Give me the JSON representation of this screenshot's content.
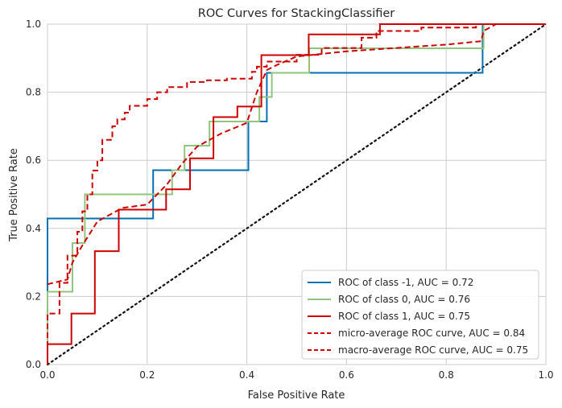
{
  "chart_data": {
    "type": "line",
    "title": "ROC Curves for StackingClassifier",
    "xlabel": "False Positive Rate",
    "ylabel": "True Positive Rate",
    "xlim": [
      0,
      1
    ],
    "ylim": [
      0,
      1
    ],
    "xticks": [
      "0.0",
      "0.2",
      "0.4",
      "0.6",
      "0.8",
      "1.0"
    ],
    "yticks": [
      "0.0",
      "0.2",
      "0.4",
      "0.6",
      "0.8",
      "1.0"
    ],
    "grid": true,
    "legend_position": "lower-right",
    "series": [
      {
        "name": "ROC of class -1, AUC = 0.72",
        "color": "#0072b2",
        "style": "solid",
        "x": [
          0,
          0,
          0.212,
          0.212,
          0.403,
          0.403,
          0.44,
          0.44,
          0.452,
          0.452,
          0.873,
          0.873,
          1
        ],
        "y": [
          0,
          0.429,
          0.429,
          0.571,
          0.571,
          0.714,
          0.714,
          0.857,
          0.857,
          0.857,
          0.857,
          1,
          1
        ]
      },
      {
        "name": "ROC of class 0, AUC = 0.76",
        "color": "#93c47d",
        "style": "solid",
        "x": [
          0,
          0,
          0.05,
          0.05,
          0.075,
          0.075,
          0.25,
          0.25,
          0.275,
          0.275,
          0.325,
          0.325,
          0.425,
          0.425,
          0.45,
          0.45,
          0.525,
          0.525,
          0.875,
          0.875,
          1
        ],
        "y": [
          0,
          0.214,
          0.214,
          0.357,
          0.357,
          0.5,
          0.5,
          0.571,
          0.571,
          0.643,
          0.643,
          0.714,
          0.714,
          0.786,
          0.786,
          0.857,
          0.857,
          0.929,
          0.929,
          1,
          1
        ]
      },
      {
        "name": "ROC of class 1, AUC = 0.75",
        "color": "#cc0000",
        "style": "solid",
        "x": [
          0,
          0,
          0.048,
          0.048,
          0.095,
          0.095,
          0.143,
          0.143,
          0.238,
          0.238,
          0.286,
          0.286,
          0.333,
          0.333,
          0.381,
          0.381,
          0.429,
          0.429,
          0.524,
          0.524,
          0.667,
          0.667,
          0.873,
          0.873,
          1
        ],
        "y": [
          0,
          0.06,
          0.06,
          0.15,
          0.15,
          0.333,
          0.333,
          0.455,
          0.455,
          0.515,
          0.515,
          0.606,
          0.606,
          0.727,
          0.727,
          0.758,
          0.758,
          0.909,
          0.909,
          0.97,
          0.97,
          1,
          1,
          1,
          1
        ]
      },
      {
        "name": "micro-average ROC curve, AUC = 0.84",
        "color": "#cc0000",
        "style": "dashed",
        "x": [
          0,
          0,
          0.024,
          0.024,
          0.04,
          0.04,
          0.06,
          0.06,
          0.07,
          0.07,
          0.08,
          0.08,
          0.09,
          0.09,
          0.1,
          0.1,
          0.11,
          0.11,
          0.13,
          0.13,
          0.14,
          0.14,
          0.155,
          0.155,
          0.165,
          0.165,
          0.2,
          0.2,
          0.22,
          0.22,
          0.24,
          0.24,
          0.28,
          0.28,
          0.32,
          0.32,
          0.36,
          0.36,
          0.41,
          0.41,
          0.42,
          0.42,
          0.44,
          0.44,
          0.5,
          0.5,
          0.55,
          0.55,
          0.63,
          0.63,
          0.66,
          0.66,
          0.75,
          0.75,
          0.86,
          0.86,
          1
        ],
        "y": [
          0,
          0.15,
          0.15,
          0.24,
          0.24,
          0.32,
          0.32,
          0.39,
          0.39,
          0.45,
          0.45,
          0.5,
          0.5,
          0.57,
          0.57,
          0.6,
          0.6,
          0.66,
          0.66,
          0.7,
          0.7,
          0.72,
          0.72,
          0.74,
          0.74,
          0.76,
          0.76,
          0.78,
          0.78,
          0.8,
          0.8,
          0.815,
          0.815,
          0.83,
          0.83,
          0.835,
          0.835,
          0.84,
          0.84,
          0.86,
          0.86,
          0.875,
          0.875,
          0.89,
          0.89,
          0.91,
          0.91,
          0.93,
          0.93,
          0.96,
          0.96,
          0.98,
          0.98,
          0.99,
          0.99,
          1,
          1
        ]
      },
      {
        "name": "macro-average ROC curve, AUC = 0.75",
        "color": "#cc0000",
        "style": "dashed",
        "x": [
          0,
          0.04,
          0.05,
          0.07,
          0.1,
          0.15,
          0.2,
          0.24,
          0.27,
          0.3,
          0.35,
          0.4,
          0.42,
          0.44,
          0.46,
          0.5,
          0.6,
          0.7,
          0.8,
          0.87,
          0.875,
          0.9,
          1
        ],
        "y": [
          0.236,
          0.25,
          0.3,
          0.35,
          0.42,
          0.46,
          0.47,
          0.53,
          0.59,
          0.64,
          0.68,
          0.71,
          0.8,
          0.865,
          0.88,
          0.905,
          0.92,
          0.93,
          0.94,
          0.95,
          0.98,
          1,
          1
        ]
      }
    ],
    "diagonal": {
      "color": "#111111",
      "style": "dotted",
      "x": [
        0,
        1
      ],
      "y": [
        0,
        1
      ]
    }
  }
}
